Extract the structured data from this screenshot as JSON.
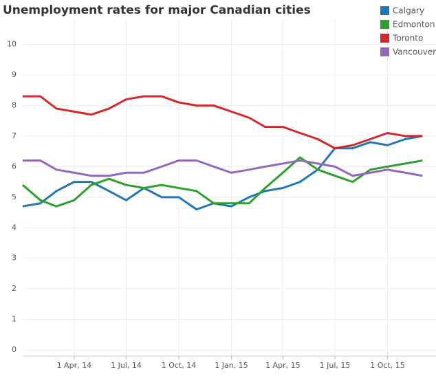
{
  "chart_data": {
    "type": "line",
    "title": "Unemployment rates for major Canadian cities",
    "x": [
      "2014-01-01",
      "2014-02-01",
      "2014-03-01",
      "2014-04-01",
      "2014-05-01",
      "2014-06-01",
      "2014-07-01",
      "2014-08-01",
      "2014-09-01",
      "2014-10-01",
      "2014-11-01",
      "2014-12-01",
      "2015-01-01",
      "2015-02-01",
      "2015-03-01",
      "2015-04-01",
      "2015-05-01",
      "2015-06-01",
      "2015-07-01",
      "2015-08-01",
      "2015-09-01",
      "2015-10-01",
      "2015-11-01",
      "2015-12-01"
    ],
    "series": [
      {
        "name": "Calgary",
        "color": "#1f77b4",
        "values": [
          4.7,
          4.8,
          5.2,
          5.5,
          5.5,
          5.2,
          4.9,
          5.3,
          5.0,
          5.0,
          4.6,
          4.8,
          4.7,
          5.0,
          5.2,
          5.3,
          5.5,
          5.9,
          6.6,
          6.6,
          6.8,
          6.7,
          6.9,
          7.0
        ]
      },
      {
        "name": "Edmonton",
        "color": "#2ca02c",
        "values": [
          5.4,
          4.9,
          4.7,
          4.9,
          5.4,
          5.6,
          5.4,
          5.3,
          5.4,
          5.3,
          5.2,
          4.8,
          4.8,
          4.8,
          5.3,
          5.8,
          6.3,
          5.9,
          5.7,
          5.5,
          5.9,
          6.0,
          6.1,
          6.2
        ]
      },
      {
        "name": "Toronto",
        "color": "#d62728",
        "values": [
          8.3,
          8.3,
          7.9,
          7.8,
          7.7,
          7.9,
          8.2,
          8.3,
          8.3,
          8.1,
          8.0,
          8.0,
          7.8,
          7.6,
          7.3,
          7.3,
          7.1,
          6.9,
          6.6,
          6.7,
          6.9,
          7.1,
          7.0,
          7.0
        ]
      },
      {
        "name": "Vancouver",
        "color": "#9467bd",
        "values": [
          6.2,
          6.2,
          5.9,
          5.8,
          5.7,
          5.7,
          5.8,
          5.8,
          6.0,
          6.2,
          6.2,
          6.0,
          5.8,
          5.9,
          6.0,
          6.1,
          6.2,
          6.1,
          6.0,
          5.7,
          5.8,
          5.9,
          5.8,
          5.7
        ]
      }
    ],
    "xlim": [
      "2014-01-01",
      "2016-01-01"
    ],
    "xticks": [
      {
        "value": "2014-04-01",
        "label": "1 Apr, 14"
      },
      {
        "value": "2014-07-01",
        "label": "1 Jul, 14"
      },
      {
        "value": "2014-10-01",
        "label": "1 Oct, 14"
      },
      {
        "value": "2015-01-01",
        "label": "1 Jan, 15"
      },
      {
        "value": "2015-04-01",
        "label": "1 Apr, 15"
      },
      {
        "value": "2015-07-01",
        "label": "1 Jul, 15"
      },
      {
        "value": "2015-10-01",
        "label": "1 Oct, 15"
      }
    ],
    "ylim": [
      -0.2,
      10.8
    ],
    "yticks": [
      0,
      1,
      2,
      3,
      4,
      5,
      6,
      7,
      8,
      9,
      10
    ],
    "grid": true,
    "legend": "top-right"
  }
}
